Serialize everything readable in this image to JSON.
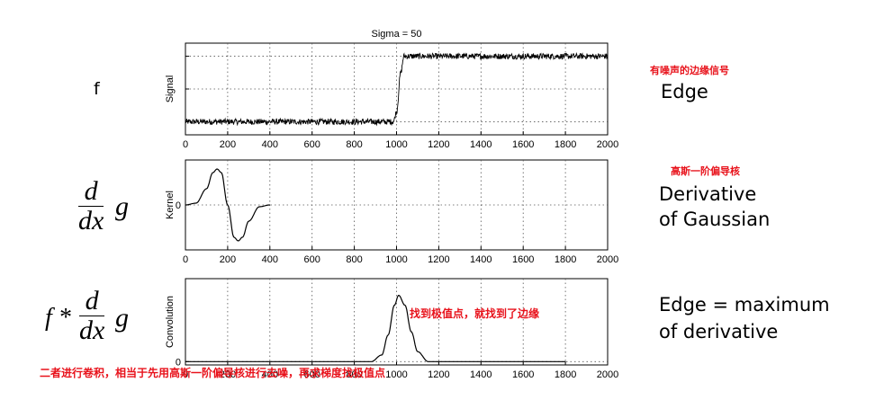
{
  "chart_data": [
    {
      "type": "line",
      "title": "Sigma = 50",
      "ylabel": "Signal",
      "xlim": [
        0,
        2000
      ],
      "xticks": [
        "0",
        "200",
        "400",
        "600",
        "800",
        "1000",
        "1200",
        "1400",
        "1600",
        "1800",
        "2000"
      ],
      "grid": true,
      "series": [
        {
          "x": [
            0,
            985,
            1000,
            1020,
            1035,
            2000
          ],
          "y": [
            0,
            0,
            0.15,
            0.75,
            1,
            1
          ],
          "noise": true
        }
      ]
    },
    {
      "type": "line",
      "ylabel": "Kernel",
      "xlim": [
        0,
        2000
      ],
      "yticks": [
        "0"
      ],
      "xticks": [
        "0",
        "200",
        "400",
        "600",
        "800",
        "1000",
        "1200",
        "1400",
        "1600",
        "1800",
        "2000"
      ],
      "grid": true,
      "series": [
        {
          "x": [
            0,
            50,
            100,
            130,
            150,
            170,
            200,
            230,
            250,
            270,
            300,
            350,
            400
          ],
          "y": [
            0,
            0.05,
            0.45,
            0.9,
            1,
            0.9,
            0,
            -0.9,
            -1,
            -0.9,
            -0.45,
            -0.05,
            0
          ]
        }
      ]
    },
    {
      "type": "line",
      "ylabel": "Convolution",
      "xlim": [
        0,
        2000
      ],
      "yticks": [
        "0"
      ],
      "xticks": [
        "0",
        "200",
        "400",
        "600",
        "800",
        "1000",
        "1200",
        "1400",
        "1600",
        "1800",
        "2000"
      ],
      "grid": true,
      "series": [
        {
          "x": [
            0,
            880,
            930,
            960,
            990,
            1010,
            1040,
            1070,
            1100,
            1150,
            1800
          ],
          "y": [
            0,
            0,
            0.1,
            0.4,
            0.85,
            1,
            0.85,
            0.45,
            0.15,
            0,
            0
          ]
        }
      ]
    }
  ],
  "formulas": {
    "f": "f",
    "d": "d",
    "dx": "dx",
    "g": "g",
    "fstar": "f *"
  },
  "descriptions": {
    "edge": "Edge",
    "derivative_line1": "Derivative",
    "derivative_line2": "of Gaussian",
    "maximum_line1": "Edge = maximum",
    "maximum_line2": "of derivative"
  },
  "notes": {
    "noisy_edge": "有噪声的边缘信号",
    "gauss_derivative": "高斯一阶偏导核",
    "find_extremum": "找到极值点，就找到了边缘",
    "bottom": "二者进行卷积，相当于先用高斯一阶偏导核进行去噪，再求梯度找极值点"
  },
  "colors": {
    "annotation": "#e8121b",
    "curve": "#000000",
    "grid": "#555555"
  }
}
